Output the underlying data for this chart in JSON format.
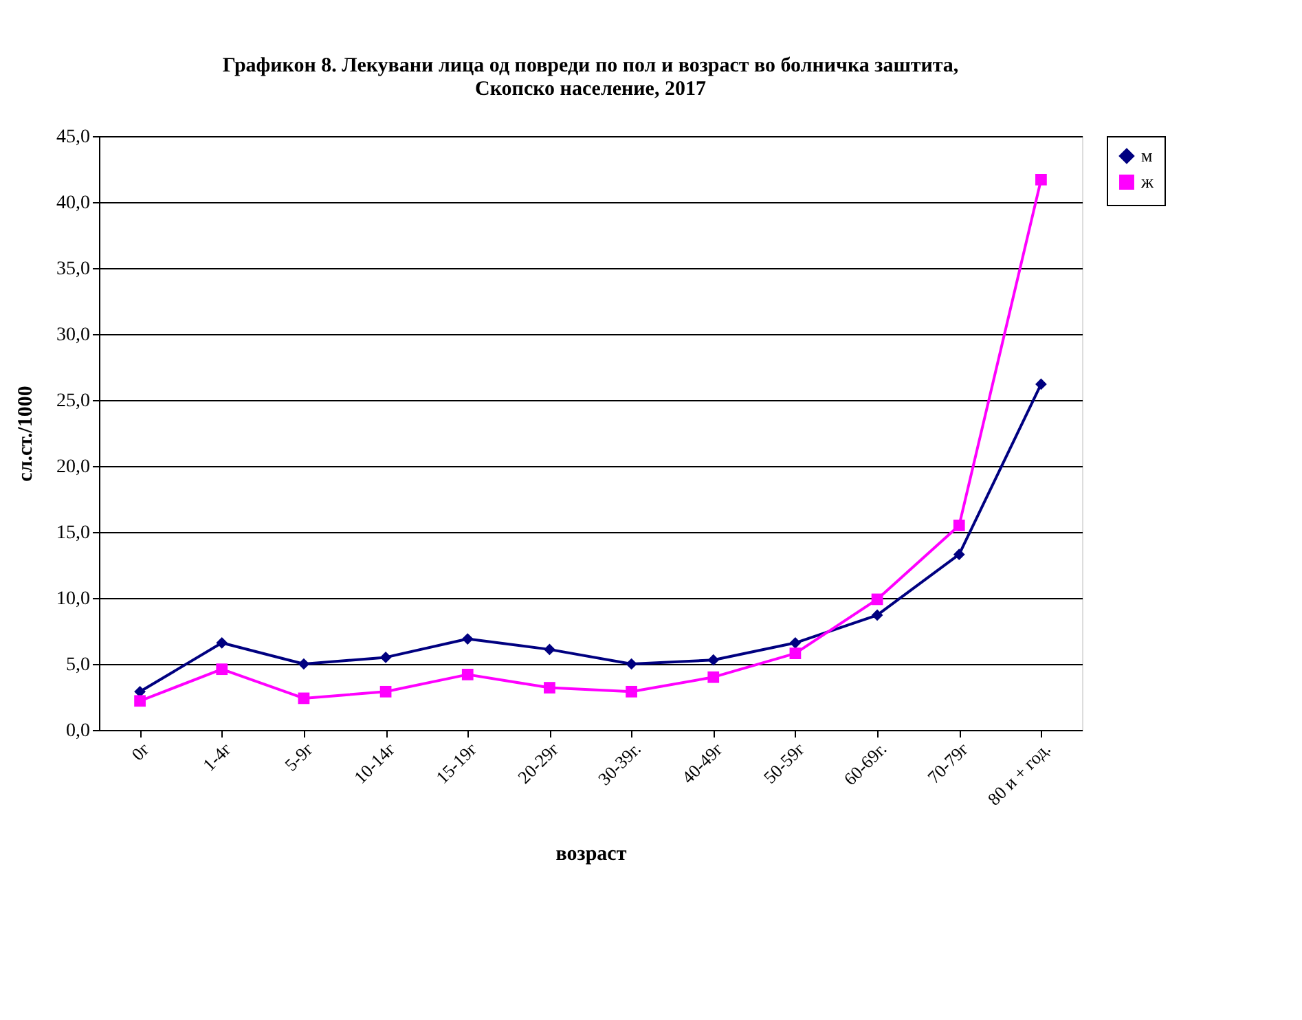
{
  "chart_data": {
    "type": "line",
    "title": [
      "Графикон 8. Лекувани лица од повреди по пол и возраст во болничка заштита,",
      "Скопско население, 2017"
    ],
    "xlabel": "возраст",
    "ylabel": "сл.ст./1000",
    "categories": [
      "0г",
      "1-4г",
      "5-9г",
      "10-14г",
      "15-19г",
      "20-29г",
      "30-39г.",
      "40-49г",
      "50-59г",
      "60-69г.",
      "70-79г",
      "80 и + год."
    ],
    "series": [
      {
        "name": "м",
        "color": "#000080",
        "marker": "diamond",
        "values": [
          2.9,
          6.6,
          5.0,
          5.5,
          6.9,
          6.1,
          5.0,
          5.3,
          6.6,
          8.7,
          13.3,
          26.2
        ]
      },
      {
        "name": "ж",
        "color": "#ff00ff",
        "marker": "square",
        "values": [
          2.2,
          4.6,
          2.4,
          2.9,
          4.2,
          3.2,
          2.9,
          4.0,
          5.8,
          9.9,
          15.5,
          41.7
        ]
      }
    ],
    "ylim": [
      0,
      45
    ],
    "yticks": [
      {
        "value": 0,
        "label": "0,0"
      },
      {
        "value": 5,
        "label": "5,0"
      },
      {
        "value": 10,
        "label": "10,0"
      },
      {
        "value": 15,
        "label": "15,0"
      },
      {
        "value": 20,
        "label": "20,0"
      },
      {
        "value": 25,
        "label": "25,0"
      },
      {
        "value": 30,
        "label": "30,0"
      },
      {
        "value": 35,
        "label": "35,0"
      },
      {
        "value": 40,
        "label": "40,0"
      },
      {
        "value": 45,
        "label": "45,0"
      }
    ],
    "grid": "y",
    "legend": "right",
    "line_style": "solid"
  }
}
